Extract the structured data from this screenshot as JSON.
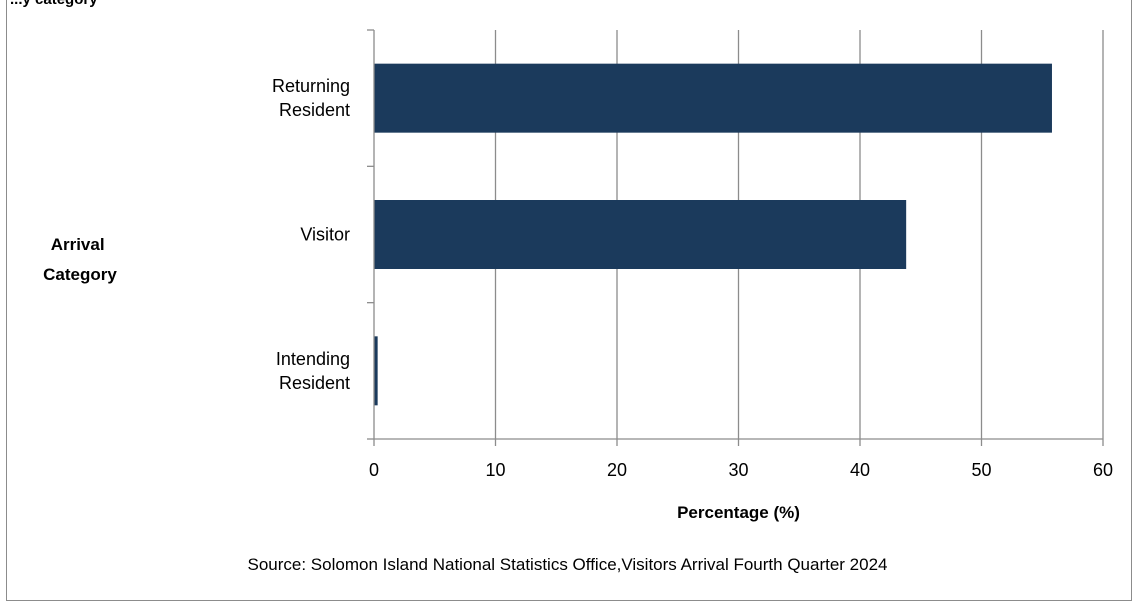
{
  "header": {
    "partial_title": "...y category"
  },
  "chart_data": {
    "type": "bar",
    "orientation": "horizontal",
    "categories": [
      "Returning Resident",
      "Visitor",
      "Intending Resident"
    ],
    "category_lines": [
      [
        "Returning",
        "Resident"
      ],
      [
        "Visitor"
      ],
      [
        "Intending",
        "Resident"
      ]
    ],
    "values": [
      55.8,
      43.8,
      0.3
    ],
    "xlabel": "Percentage (%)",
    "ylabel_lines": [
      "Arrival",
      "Category"
    ],
    "xlim": [
      0,
      60
    ],
    "xticks": [
      0,
      10,
      20,
      30,
      40,
      50,
      60
    ],
    "grid": true,
    "bar_color": "#1b3a5c",
    "grid_color": "#8c8c8c"
  },
  "source": "Source: Solomon Island National Statistics Office,Visitors Arrival Fourth Quarter 2024"
}
